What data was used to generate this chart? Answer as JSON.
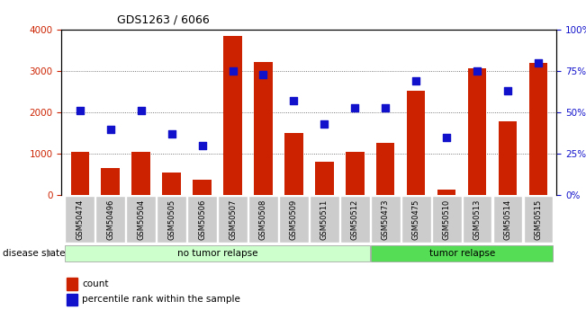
{
  "title": "GDS1263 / 6066",
  "samples": [
    "GSM50474",
    "GSM50496",
    "GSM50504",
    "GSM50505",
    "GSM50506",
    "GSM50507",
    "GSM50508",
    "GSM50509",
    "GSM50511",
    "GSM50512",
    "GSM50473",
    "GSM50475",
    "GSM50510",
    "GSM50513",
    "GSM50514",
    "GSM50515"
  ],
  "counts": [
    1050,
    650,
    1050,
    550,
    380,
    3850,
    3220,
    1500,
    800,
    1050,
    1270,
    2520,
    130,
    3060,
    1780,
    3200
  ],
  "percentiles": [
    51,
    40,
    51,
    37,
    30,
    75,
    73,
    57,
    43,
    53,
    53,
    69,
    35,
    75,
    63,
    80
  ],
  "no_tumor_count": 10,
  "tumor_count": 6,
  "bar_color": "#cc2200",
  "dot_color": "#1111cc",
  "no_tumor_color": "#ccffcc",
  "tumor_color": "#55dd55",
  "label_bg_color": "#cccccc",
  "ylim_left": [
    0,
    4000
  ],
  "ylim_right": [
    0,
    100
  ],
  "yticks_left": [
    0,
    1000,
    2000,
    3000,
    4000
  ],
  "yticks_right": [
    0,
    25,
    50,
    75,
    100
  ],
  "ytick_labels_right": [
    "0%",
    "25%",
    "50%",
    "75%",
    "100%"
  ],
  "grid_color": "#555555",
  "legend_count_label": "count",
  "legend_pct_label": "percentile rank within the sample",
  "disease_state_label": "disease state",
  "no_tumor_label": "no tumor relapse",
  "tumor_label": "tumor relapse"
}
